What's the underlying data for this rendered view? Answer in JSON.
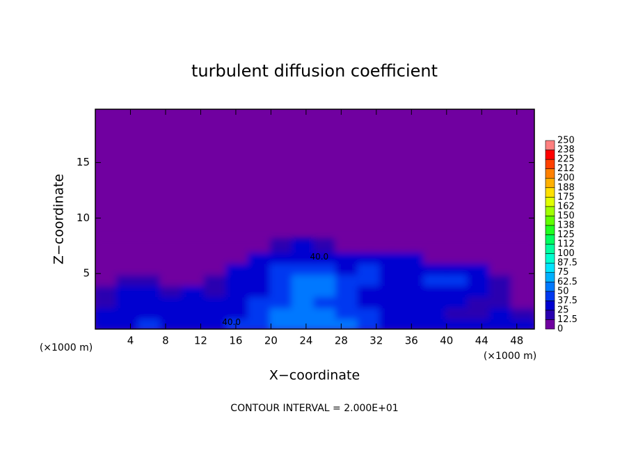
{
  "chart_data": {
    "type": "contour",
    "title": "turbulent diffusion coefficient",
    "xlabel": "X−coordinate",
    "ylabel": "Z−coordinate",
    "xunit": "(×1000 m)",
    "footnote": "CONTOUR INTERVAL = 2.000E+01",
    "contour_labels": [
      "40.0",
      "40.0"
    ],
    "xlim": [
      0,
      50
    ],
    "ylim": [
      0,
      19.8
    ],
    "xticks": [
      4,
      8,
      12,
      16,
      20,
      24,
      28,
      32,
      36,
      40,
      44,
      48
    ],
    "yticks": [
      5,
      10,
      15
    ],
    "x": [
      1.25,
      3.75,
      6.25,
      8.75,
      11.25,
      13.75,
      16.25,
      18.75,
      21.25,
      23.75,
      26.25,
      28.75,
      31.25,
      33.75,
      36.25,
      38.75,
      41.25,
      43.75,
      46.25,
      48.75
    ],
    "y": [
      0.5,
      1.5,
      2.5,
      3.5,
      4.5,
      5.5,
      6.5,
      7.5
    ],
    "z": [
      [
        30,
        35,
        40,
        35,
        30,
        35,
        40,
        40,
        50,
        55,
        50,
        50,
        40,
        35,
        35,
        30,
        30,
        25,
        25,
        25
      ],
      [
        25,
        30,
        35,
        30,
        35,
        30,
        35,
        40,
        50,
        55,
        50,
        45,
        40,
        35,
        30,
        25,
        20,
        20,
        25,
        20
      ],
      [
        20,
        25,
        30,
        25,
        30,
        25,
        35,
        40,
        45,
        60,
        45,
        45,
        35,
        30,
        30,
        30,
        25,
        20,
        15,
        10
      ],
      [
        15,
        25,
        30,
        20,
        25,
        20,
        35,
        35,
        40,
        60,
        50,
        45,
        35,
        35,
        30,
        35,
        30,
        30,
        20,
        10
      ],
      [
        10,
        20,
        15,
        10,
        10,
        15,
        35,
        35,
        40,
        55,
        50,
        40,
        40,
        35,
        35,
        40,
        40,
        35,
        15,
        5
      ],
      [
        5,
        5,
        5,
        5,
        5,
        5,
        30,
        35,
        40,
        45,
        45,
        35,
        40,
        35,
        35,
        35,
        30,
        25,
        5,
        5
      ],
      [
        0,
        0,
        0,
        0,
        0,
        0,
        10,
        30,
        35,
        35,
        30,
        25,
        30,
        30,
        25,
        10,
        5,
        0,
        0,
        0
      ],
      [
        0,
        0,
        0,
        0,
        0,
        0,
        0,
        5,
        20,
        25,
        15,
        5,
        5,
        5,
        0,
        0,
        0,
        0,
        0,
        0
      ]
    ],
    "levels": [
      0,
      12.5,
      25,
      37.5,
      50,
      62.5,
      75,
      87.5,
      100,
      112,
      125,
      138,
      150,
      162,
      175,
      188,
      200,
      212,
      225,
      238,
      250
    ],
    "colors": [
      "#7000a0",
      "#2a00b0",
      "#0000d0",
      "#0038f0",
      "#0078ff",
      "#00b0ff",
      "#00e4ff",
      "#00ffd0",
      "#00ffa0",
      "#00ff60",
      "#20ff20",
      "#60ff00",
      "#a0ff00",
      "#e0ff00",
      "#ffe000",
      "#ffb000",
      "#ff8000",
      "#ff4000",
      "#ff0000",
      "#ff8080"
    ]
  }
}
